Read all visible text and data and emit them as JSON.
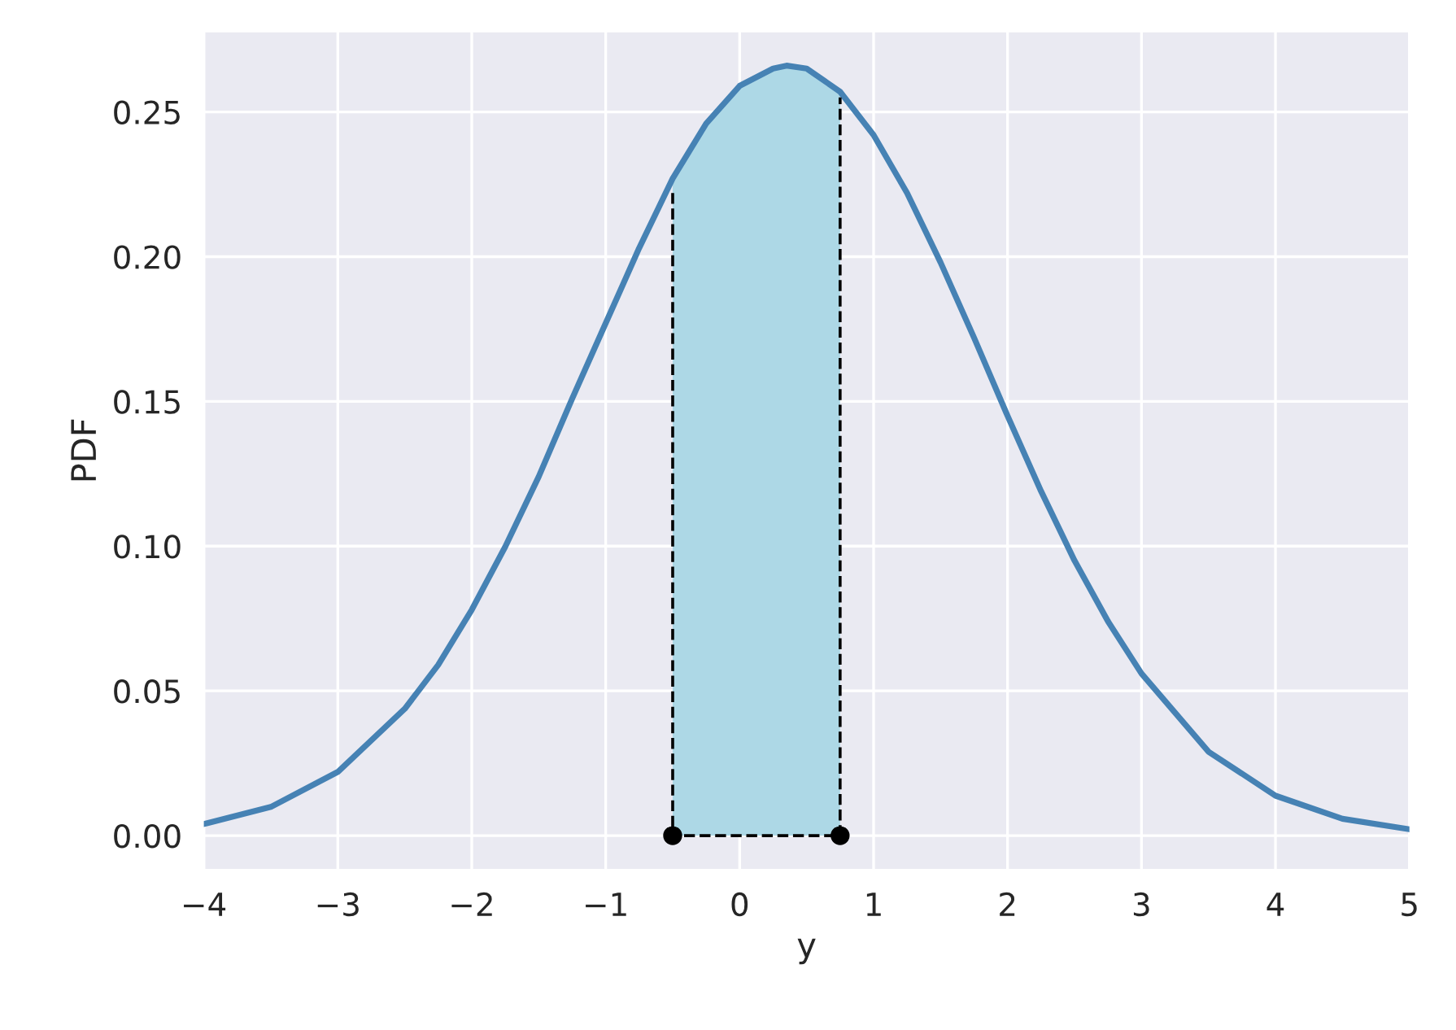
{
  "chart_data": {
    "type": "line",
    "xlabel": "y",
    "ylabel": "PDF",
    "xlim": [
      -4,
      5
    ],
    "ylim": [
      -0.012,
      0.278
    ],
    "xticks": [
      {
        "value": -4,
        "label": "−4"
      },
      {
        "value": -3,
        "label": "−3"
      },
      {
        "value": -2,
        "label": "−2"
      },
      {
        "value": -1,
        "label": "−1"
      },
      0,
      1,
      2,
      3,
      4,
      5
    ],
    "yticks": [
      {
        "value": 0,
        "label": "0.00"
      },
      {
        "value": 0.05,
        "label": "0.05"
      },
      {
        "value": 0.1,
        "label": "0.10"
      },
      {
        "value": 0.15,
        "label": "0.15"
      },
      {
        "value": 0.2,
        "label": "0.20"
      },
      {
        "value": 0.25,
        "label": "0.25"
      }
    ],
    "grid": true,
    "series": [
      {
        "type": "area",
        "color": "#add8e6",
        "x": [
          -0.5,
          -0.25,
          0,
          0.25,
          0.35,
          0.5,
          0.75
        ],
        "values": [
          0.227,
          0.246,
          0.259,
          0.265,
          0.266,
          0.265,
          0.257
        ]
      },
      {
        "color": "#4682b4",
        "x": [
          -4,
          -3.5,
          -3,
          -2.5,
          -2.25,
          -2,
          -1.75,
          -1.5,
          -1.25,
          -1,
          -0.75,
          -0.5,
          -0.25,
          0,
          0.25,
          0.35,
          0.5,
          0.75,
          1,
          1.25,
          1.5,
          1.75,
          2,
          2.25,
          2.5,
          2.75,
          3,
          3.5,
          4,
          4.5,
          5
        ],
        "values": [
          0.004,
          0.0099,
          0.022,
          0.0438,
          0.059,
          0.078,
          0.0998,
          0.124,
          0.151,
          0.177,
          0.203,
          0.227,
          0.246,
          0.259,
          0.265,
          0.266,
          0.265,
          0.257,
          0.242,
          0.222,
          0.198,
          0.172,
          0.145,
          0.119,
          0.095,
          0.074,
          0.056,
          0.029,
          0.0138,
          0.0058,
          0.0022
        ]
      },
      {
        "type": "line",
        "color": "#000000",
        "line_style": "dashed",
        "x": [
          -0.5,
          -0.5,
          0.75,
          0.75
        ],
        "values": [
          0.222,
          0,
          0,
          0.255
        ]
      },
      {
        "type": "scatter",
        "color": "#000000",
        "marker": "circle",
        "x": [
          -0.5,
          0.75
        ],
        "values": [
          0,
          0
        ]
      }
    ]
  }
}
